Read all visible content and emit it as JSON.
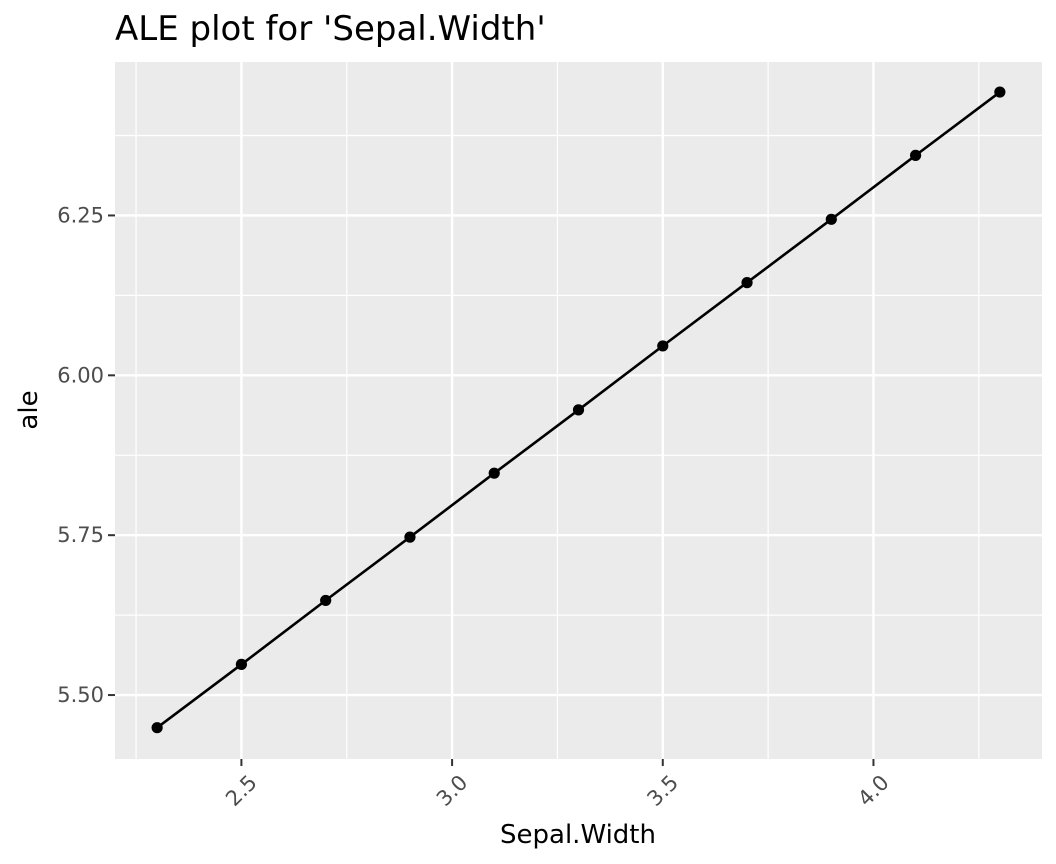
{
  "chart_data": {
    "type": "line",
    "title": "ALE plot for 'Sepal.Width'",
    "xlabel": "Sepal.Width",
    "ylabel": "ale",
    "x": [
      2.3,
      2.5,
      2.7,
      2.9,
      3.1,
      3.3,
      3.5,
      3.7,
      3.9,
      4.1,
      4.3
    ],
    "series": [
      {
        "values": [
          5.449,
          5.548,
          5.648,
          5.747,
          5.847,
          5.946,
          6.046,
          6.145,
          6.244,
          6.344,
          6.443
        ]
      }
    ],
    "xlim": [
      2.2,
      4.4
    ],
    "ylim": [
      5.4,
      6.49
    ],
    "x_ticks": [
      2.5,
      3.0,
      3.5,
      4.0
    ],
    "x_tick_labels": [
      "2.5",
      "3.0",
      "3.5",
      "4.0"
    ],
    "y_ticks": [
      5.5,
      5.75,
      6.0,
      6.25
    ],
    "y_tick_labels": [
      "5.50",
      "5.75",
      "6.00",
      "6.25"
    ],
    "grid": true,
    "legend": "none",
    "colors": {
      "panel": "#ebebeb",
      "grid": "#ffffff",
      "line": "#000000",
      "point": "#000000"
    }
  }
}
